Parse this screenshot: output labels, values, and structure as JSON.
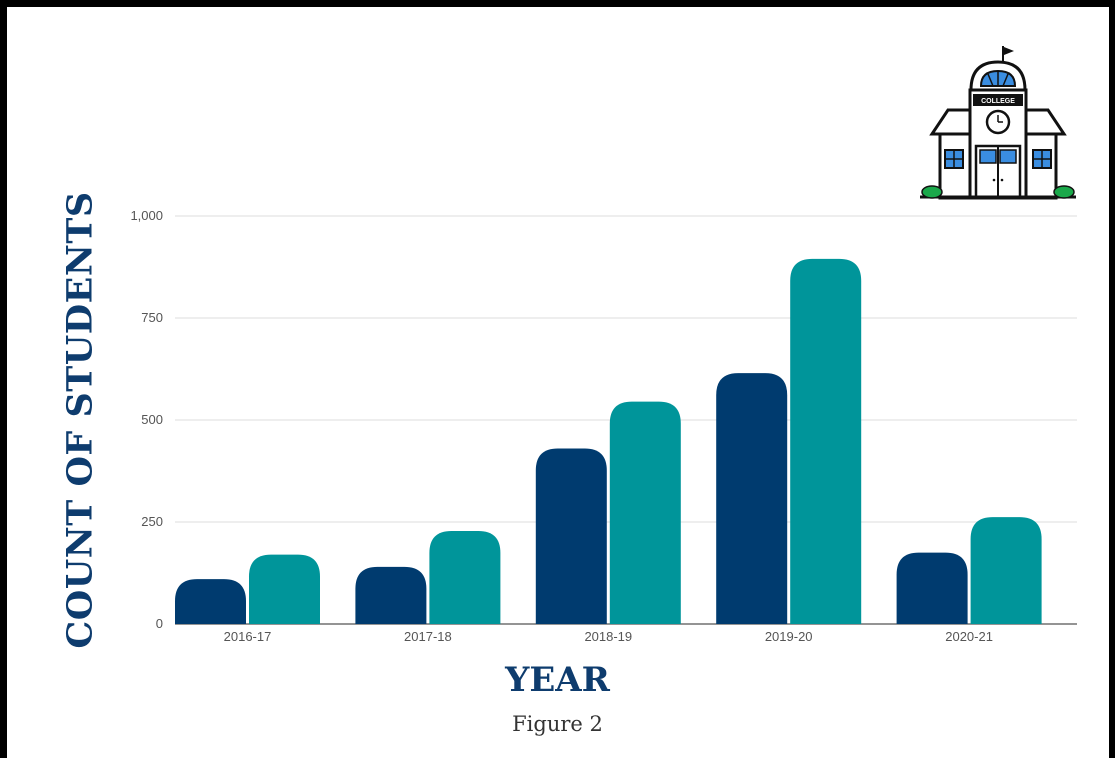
{
  "chart_data": {
    "type": "bar",
    "categories": [
      "2016-17",
      "2017-18",
      "2018-19",
      "2019-20",
      "2020-21"
    ],
    "series": [
      {
        "values": [
          110,
          140,
          430,
          615,
          175
        ]
      },
      {
        "values": [
          170,
          228,
          545,
          895,
          262
        ]
      }
    ],
    "xlabel": "YEAR",
    "ylabel": "COUNT OF STUDENTS",
    "ylim": [
      0,
      1000
    ],
    "yticks": [
      0,
      250,
      500,
      750,
      1000
    ],
    "ytick_labels": [
      "0",
      "250",
      "500",
      "750",
      "1,000"
    ],
    "grid": true,
    "legend": "none",
    "colors": [
      "#003b6f",
      "#00959a"
    ]
  },
  "caption": "Figure 2",
  "icon": {
    "name": "college-building-icon",
    "sign_text": "COLLEGE"
  }
}
